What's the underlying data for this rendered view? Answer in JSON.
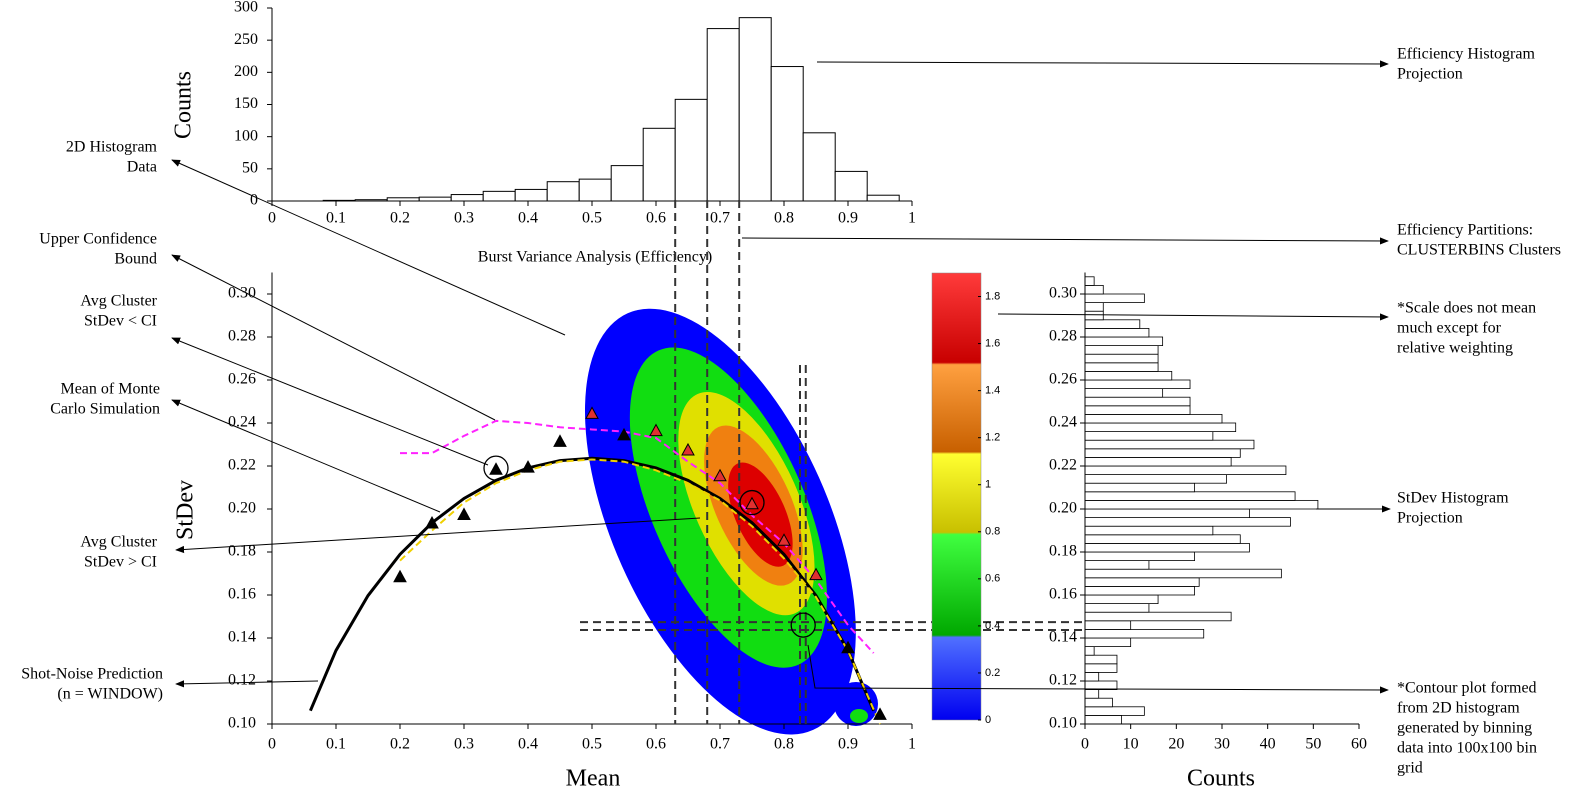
{
  "chart_data": [
    {
      "type": "histogram",
      "ylabel": "Counts",
      "xlabel": "Burst Variance Analysis (Efficiency)",
      "bins": [
        0.08,
        0.13,
        0.18,
        0.23,
        0.28,
        0.33,
        0.38,
        0.43,
        0.48,
        0.53,
        0.58,
        0.63,
        0.68,
        0.73,
        0.78,
        0.83,
        0.88,
        0.93,
        0.98
      ],
      "counts": [
        1,
        2,
        5,
        6,
        10,
        15,
        18,
        30,
        34,
        55,
        113,
        158,
        268,
        285,
        209,
        106,
        46,
        9
      ],
      "color": "#ffffff",
      "edgecolor": "#000000",
      "xlim": [
        0,
        1
      ],
      "xticks": [
        0,
        0.1,
        0.2,
        0.3,
        0.4,
        0.5,
        0.6,
        0.7,
        0.8,
        0.9,
        1
      ],
      "ylim": [
        0,
        300
      ],
      "yticks": [
        0,
        50,
        100,
        150,
        200,
        250,
        300
      ],
      "partitions": [
        0.63,
        0.68,
        0.73
      ]
    },
    {
      "type": "scatter",
      "xlabel": "Mean",
      "ylabel": "StDev",
      "xlim": [
        0,
        1
      ],
      "xticks": [
        0,
        0.1,
        0.2,
        0.3,
        0.4,
        0.5,
        0.6,
        0.7,
        0.8,
        0.9,
        1
      ],
      "ylim": [
        0.1,
        0.31
      ],
      "yticks": [
        {
          "value": 0.1,
          "label": "0.10"
        },
        0.12,
        0.14,
        0.16,
        0.18,
        {
          "value": 0.2,
          "label": "0.20"
        },
        0.22,
        0.24,
        0.26,
        0.28,
        {
          "value": 0.3,
          "label": "0.30"
        }
      ],
      "contour": {
        "colors": [
          "#0000ff",
          "#11dd11",
          "#e0e000",
          "#f08010",
          "#dd0000"
        ]
      },
      "colorbar": {
        "lim": [
          0,
          1.9
        ],
        "ticks": [
          0,
          0.2,
          0.4,
          0.6,
          0.8,
          1,
          1.2,
          1.4,
          1.6,
          1.8
        ]
      },
      "lines": [
        {
          "color": "#000000",
          "style": "solid",
          "width": 3,
          "x": [
            0.06,
            0.1,
            0.15,
            0.2,
            0.25,
            0.3,
            0.35,
            0.4,
            0.45,
            0.5,
            0.55,
            0.6,
            0.65,
            0.7,
            0.75,
            0.8,
            0.85,
            0.9,
            0.94
          ],
          "y": [
            0.1062,
            0.1342,
            0.1597,
            0.1789,
            0.1936,
            0.2049,
            0.2133,
            0.2191,
            0.2225,
            0.2236,
            0.2225,
            0.2191,
            0.2133,
            0.2049,
            0.1936,
            0.1789,
            0.1597,
            0.1342,
            0.1062
          ]
        },
        {
          "color": "#f0d000",
          "style": "dashed",
          "width": 2,
          "x": [
            0.2,
            0.25,
            0.3,
            0.35,
            0.4,
            0.45,
            0.5,
            0.55,
            0.6,
            0.65,
            0.7,
            0.75,
            0.8,
            0.85,
            0.9,
            0.95
          ],
          "y": [
            0.176,
            0.19,
            0.203,
            0.212,
            0.218,
            0.222,
            0.223,
            0.222,
            0.218,
            0.212,
            0.204,
            0.192,
            0.177,
            0.159,
            0.134,
            0.1
          ]
        },
        {
          "color": "#ff22ff",
          "style": "dashed",
          "width": 2,
          "x": [
            0.2,
            0.25,
            0.3,
            0.35,
            0.4,
            0.45,
            0.5,
            0.55,
            0.6,
            0.65,
            0.7,
            0.75,
            0.8,
            0.85,
            0.9,
            0.94
          ],
          "y": [
            0.226,
            0.226,
            0.234,
            0.241,
            0.24,
            0.238,
            0.237,
            0.236,
            0.233,
            0.222,
            0.212,
            0.197,
            0.184,
            0.167,
            0.146,
            0.133
          ]
        }
      ],
      "points": [
        {
          "color": "#000000",
          "x": [
            0.2,
            0.25,
            0.3,
            0.35,
            0.4,
            0.45,
            0.55,
            0.9,
            0.95
          ],
          "y": [
            0.168,
            0.193,
            0.197,
            0.218,
            0.219,
            0.231,
            0.234,
            0.135,
            0.104
          ]
        },
        {
          "color": "#e03030",
          "x": [
            0.5,
            0.6,
            0.65,
            0.7,
            0.75,
            0.8,
            0.85
          ],
          "y": [
            0.244,
            0.236,
            0.227,
            0.215,
            0.202,
            0.185,
            0.169
          ]
        }
      ],
      "circles": {
        "x": [
          0.35,
          0.75,
          0.83
        ],
        "y": [
          0.219,
          0.203,
          0.146
        ]
      },
      "selection": {
        "x": [
          0.825,
          0.834
        ],
        "y": [
          0.1437,
          0.1474
        ]
      }
    },
    {
      "type": "barh",
      "xlabel": "Counts",
      "bins": [
        0.1,
        0.104,
        0.108,
        0.112,
        0.116,
        0.12,
        0.124,
        0.128,
        0.132,
        0.136,
        0.14,
        0.144,
        0.148,
        0.152,
        0.156,
        0.16,
        0.164,
        0.168,
        0.172,
        0.176,
        0.18,
        0.184,
        0.188,
        0.192,
        0.196,
        0.2,
        0.204,
        0.208,
        0.212,
        0.216,
        0.22,
        0.224,
        0.228,
        0.232,
        0.236,
        0.24,
        0.244,
        0.248,
        0.252,
        0.256,
        0.26,
        0.264,
        0.268,
        0.272,
        0.276,
        0.28,
        0.284,
        0.288,
        0.292,
        0.296,
        0.3,
        0.304,
        0.308
      ],
      "counts": [
        8,
        13,
        6,
        3,
        7,
        3,
        7,
        7,
        2,
        10,
        26,
        10,
        32,
        14,
        16,
        24,
        25,
        43,
        14,
        24,
        36,
        34,
        28,
        45,
        36,
        51,
        46,
        24,
        31,
        44,
        32,
        34,
        37,
        28,
        33,
        30,
        23,
        23,
        17,
        23,
        19,
        16,
        16,
        16,
        17,
        14,
        12,
        4,
        4,
        13,
        4,
        2
      ],
      "color": "#ffffff",
      "edgecolor": "#000000",
      "xlim": [
        0,
        60
      ],
      "xticks": [
        0,
        10,
        20,
        30,
        40,
        50,
        60
      ],
      "ylim": [
        0.1,
        0.31
      ],
      "yticks": [
        {
          "value": 0.1,
          "label": "0.10"
        },
        0.12,
        0.14,
        0.16,
        0.18,
        {
          "value": 0.2,
          "label": "0.20"
        },
        0.22,
        0.24,
        0.26,
        0.28,
        {
          "value": 0.3,
          "label": "0.30"
        }
      ]
    }
  ],
  "annotations": [
    {
      "lines": [
        "2D Histogram",
        "Data"
      ]
    },
    {
      "lines": [
        "Upper Confidence",
        "Bound"
      ]
    },
    {
      "lines": [
        "Avg Cluster",
        "StDev < CI"
      ]
    },
    {
      "lines": [
        "Mean of Monte",
        "Carlo Simulation"
      ]
    },
    {
      "lines": [
        "Avg Cluster",
        "StDev > CI"
      ]
    },
    {
      "lines": [
        "Shot-Noise Prediction",
        "(n = WINDOW)"
      ]
    },
    {
      "lines": [
        "Efficiency Histogram",
        "Projection"
      ]
    },
    {
      "lines": [
        "Efficiency Partitions:",
        "CLUSTERBINS Clusters"
      ]
    },
    {
      "lines": [
        "*Scale does not mean",
        "much except for",
        "relative weighting"
      ]
    },
    {
      "lines": [
        "StDev Histogram",
        "Projection"
      ]
    },
    {
      "lines": [
        "*Contour plot formed",
        "from 2D histogram",
        "generated by binning",
        "data into 100x100 bin",
        "grid"
      ]
    }
  ]
}
